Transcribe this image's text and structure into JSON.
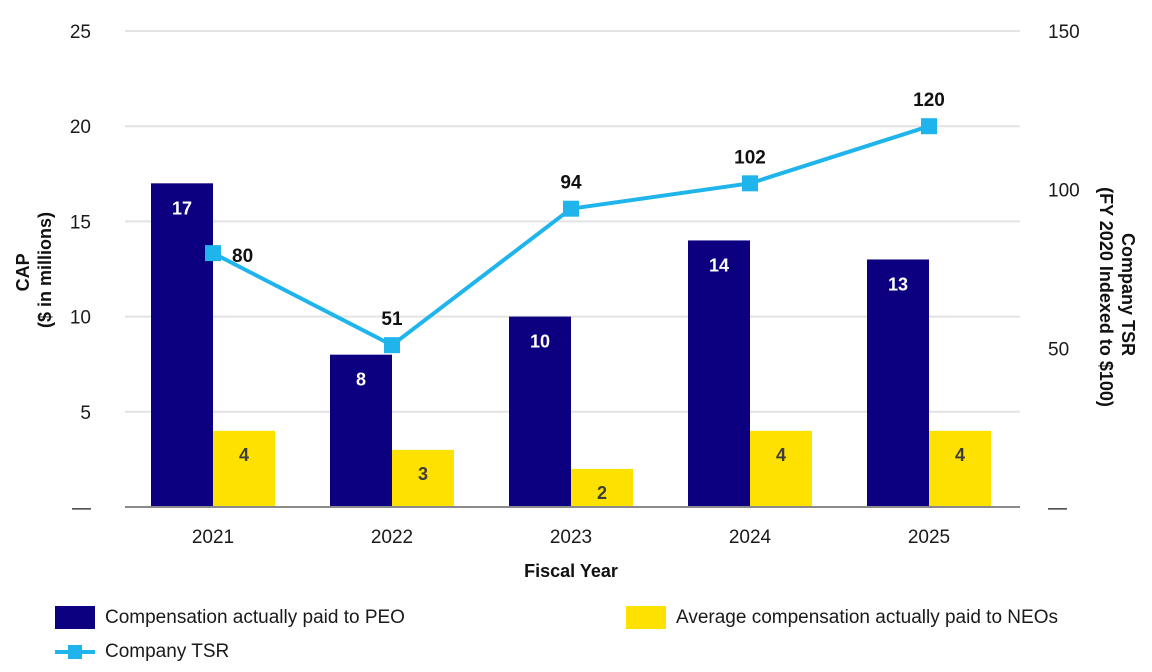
{
  "colors": {
    "peo": "#0c0080",
    "neo": "#ffe100",
    "tsr": "#1fb5ec",
    "grid": "#e3e3e3",
    "axis": "#8a8a8a",
    "peo_label": "#ffffff",
    "neo_label": "#3d3d3d"
  },
  "chart_data": {
    "type": "bar",
    "categories": [
      "2021",
      "2022",
      "2023",
      "2024",
      "2025"
    ],
    "series": [
      {
        "name": "Compensation actually paid to PEO",
        "type": "bar",
        "axis": "left",
        "values": [
          17,
          8,
          10,
          14,
          13
        ]
      },
      {
        "name": "Average compensation actually paid to NEOs",
        "type": "bar",
        "axis": "left",
        "values": [
          4,
          3,
          2,
          4,
          4
        ]
      },
      {
        "name": "Company TSR",
        "type": "line",
        "axis": "right",
        "marker": "square",
        "values": [
          80,
          51,
          94,
          102,
          120
        ]
      }
    ],
    "xlabel": "Fiscal Year",
    "ylabel_lines": [
      "CAP",
      "($ in millions)"
    ],
    "y2label_lines": [
      "Company TSR",
      "(FY 2020 Indexed to $100)"
    ],
    "ylim": [
      0,
      25
    ],
    "y2lim": [
      0,
      150
    ],
    "yticks": [
      {
        "value": 0,
        "label": "—"
      },
      {
        "value": 5,
        "label": "5"
      },
      {
        "value": 10,
        "label": "10"
      },
      {
        "value": 15,
        "label": "15"
      },
      {
        "value": 20,
        "label": "20"
      },
      {
        "value": 25,
        "label": "25"
      }
    ],
    "y2ticks": [
      {
        "value": 0,
        "label": "—"
      },
      {
        "value": 50,
        "label": "50"
      },
      {
        "value": 100,
        "label": "100"
      },
      {
        "value": 150,
        "label": "150"
      }
    ],
    "grid": true,
    "legend_position": "bottom"
  }
}
